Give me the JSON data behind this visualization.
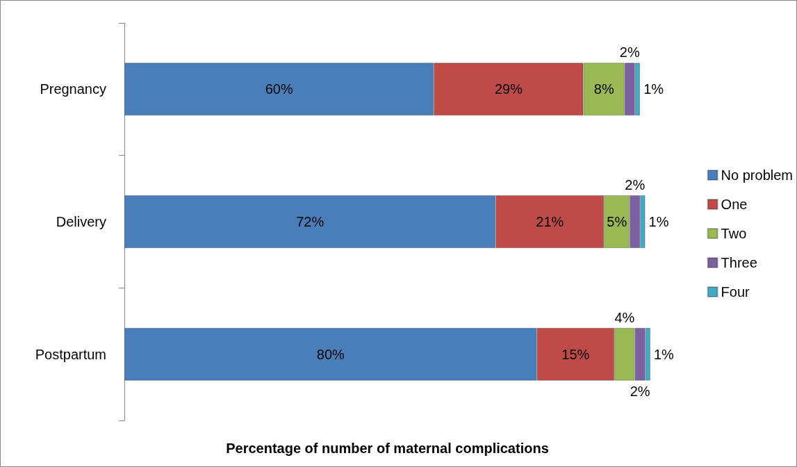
{
  "chart_data": {
    "type": "bar",
    "orientation": "horizontal",
    "stacked": true,
    "categories": [
      "Pregnancy",
      "Delivery",
      "Postpartum"
    ],
    "xlabel": "Percentage of number of maternal complications",
    "series": [
      {
        "name": "No problem",
        "color": "#4a7ebb",
        "values": [
          60,
          72,
          80
        ],
        "value_labels": [
          "60%",
          "72%",
          "80%"
        ]
      },
      {
        "name": "One",
        "color": "#be4b48",
        "values": [
          29,
          21,
          15
        ],
        "value_labels": [
          "29%",
          "21%",
          "15%"
        ]
      },
      {
        "name": "Two",
        "color": "#98b954",
        "values": [
          8,
          5,
          4
        ],
        "value_labels": [
          "8%",
          "5%",
          "4%"
        ]
      },
      {
        "name": "Three",
        "color": "#7d60a0",
        "values": [
          2,
          2,
          2
        ],
        "value_labels": [
          "2%",
          "2%",
          "2%"
        ]
      },
      {
        "name": "Four",
        "color": "#46aac5",
        "values": [
          1,
          1,
          1
        ],
        "value_labels": [
          "1%",
          "1%",
          "1%"
        ]
      }
    ],
    "legend": "right",
    "grid": false,
    "tick_labels": "y"
  }
}
